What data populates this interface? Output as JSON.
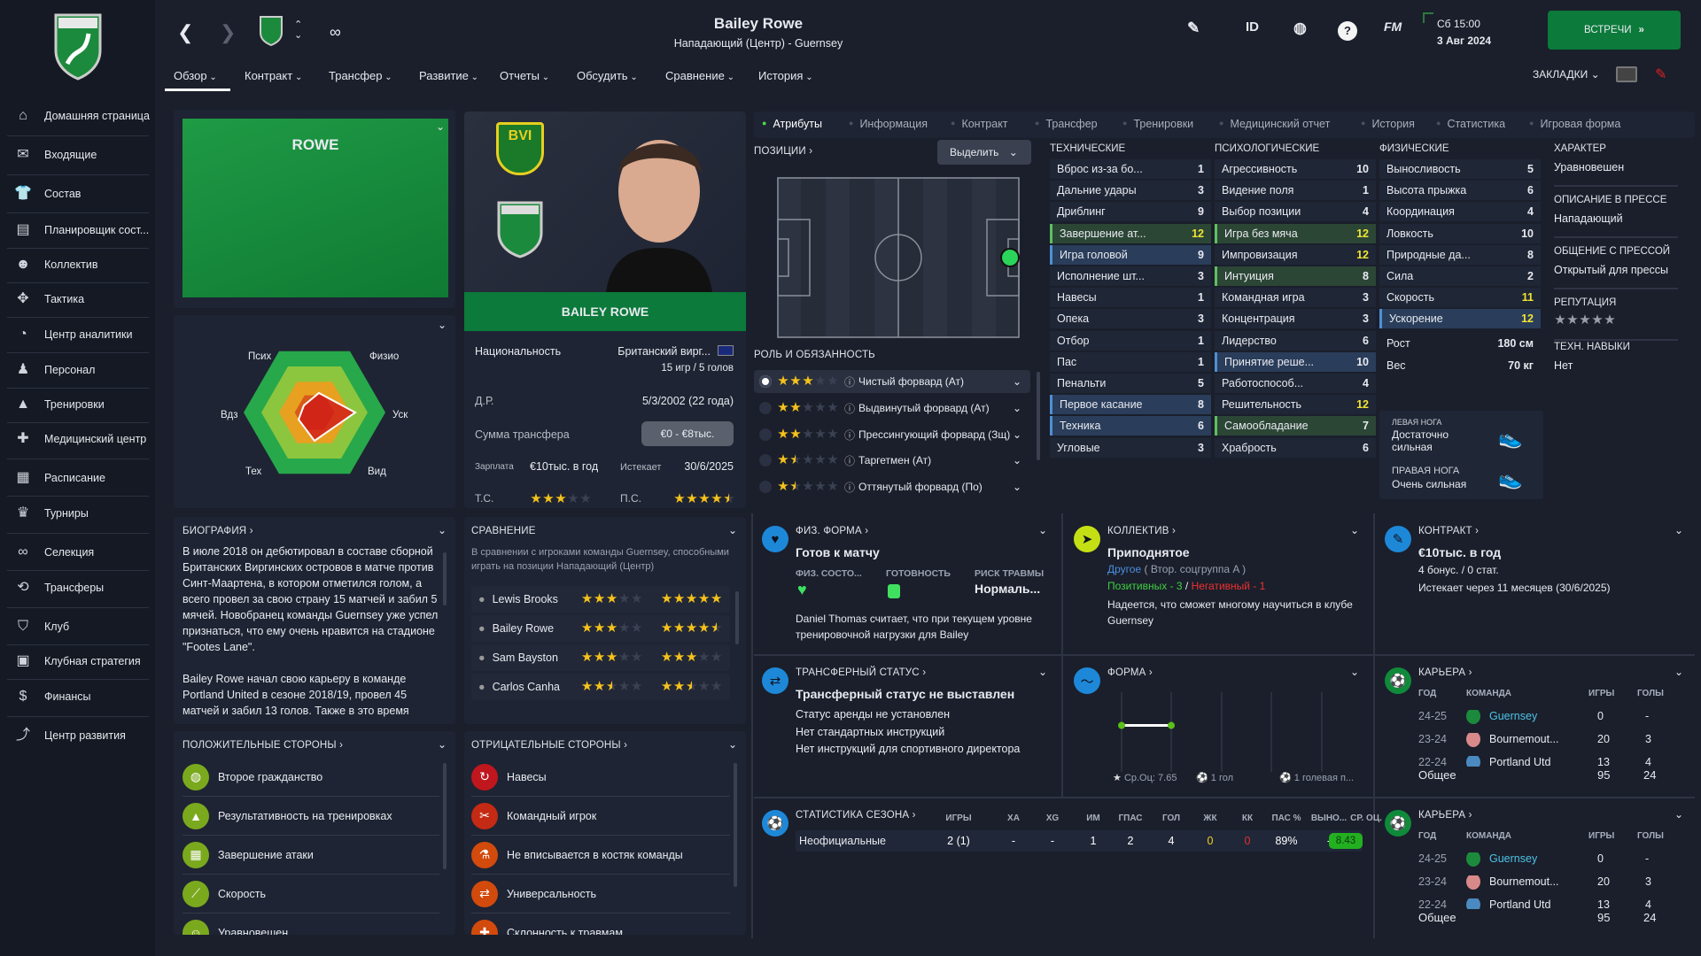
{
  "sidebar": {
    "items": [
      {
        "label": "Домашняя страница",
        "icon": "home-icon",
        "glyph": "⌂"
      },
      {
        "label": "Входящие",
        "icon": "mail-icon",
        "glyph": "✉"
      },
      {
        "label": "Состав",
        "icon": "shirt-icon",
        "glyph": "👕"
      },
      {
        "label": "Планировщик сост...",
        "icon": "clipboard-icon",
        "glyph": "▤"
      },
      {
        "label": "Коллектив",
        "icon": "group-icon",
        "glyph": "☻"
      },
      {
        "label": "Тактика",
        "icon": "tactics-icon",
        "glyph": "✥"
      },
      {
        "label": "Центр аналитики",
        "icon": "analytics-icon",
        "glyph": "◔"
      },
      {
        "label": "Персонал",
        "icon": "staff-icon",
        "glyph": "♟"
      },
      {
        "label": "Тренировки",
        "icon": "training-cone-icon",
        "glyph": "▲"
      },
      {
        "label": "Медицинский центр",
        "icon": "medical-icon",
        "glyph": "✚"
      },
      {
        "label": "Расписание",
        "icon": "calendar-icon",
        "glyph": "▦"
      },
      {
        "label": "Турниры",
        "icon": "trophy-icon",
        "glyph": "♛"
      },
      {
        "label": "Селекция",
        "icon": "binoculars-icon",
        "glyph": "∞"
      },
      {
        "label": "Трансферы",
        "icon": "transfer-icon",
        "glyph": "⟲"
      },
      {
        "label": "Клуб",
        "icon": "club-shield-icon",
        "glyph": "⛉"
      },
      {
        "label": "Клубная стратегия",
        "icon": "strategy-icon",
        "glyph": "▣"
      },
      {
        "label": "Финансы",
        "icon": "finance-icon",
        "glyph": "$"
      },
      {
        "label": "Центр развития",
        "icon": "development-icon",
        "glyph": "⤴"
      }
    ]
  },
  "header": {
    "title": "Bailey Rowe",
    "subtitle": "Нападающий (Центр) - Guernsey",
    "time": "Сб 15:00",
    "date": "3 Авг 2024",
    "id_label": "ID",
    "fm_label": "FM",
    "continue_label": "ВСТРЕЧИ",
    "bookmarks_label": "ЗАКЛАДКИ",
    "tabs": [
      "Обзор",
      "Контракт",
      "Трансфер",
      "Развитие",
      "Отчеты",
      "Обсудить",
      "Сравнение",
      "История"
    ]
  },
  "namecard": {
    "surname": "ROWE",
    "radar_labels": [
      "Псих",
      "Физио",
      "Уск",
      "Вид",
      "Тех",
      "Вдз"
    ]
  },
  "player": {
    "name": "BAILEY ROWE",
    "nat_label": "Национальность",
    "nat_value": "Британский вирг...",
    "intl": "15 игр / 5 голов",
    "dob_label": "Д.Р.",
    "dob_value": "5/3/2002 (22 года)",
    "fee_label": "Сумма трансфера",
    "fee_value": "€0 - €8тыс.",
    "wage_label": "Зарплата",
    "wage_value": "€10тыс. в год",
    "expires_label": "Истекает",
    "expires_value": "30/6/2025",
    "ca_label": "Т.С.",
    "ca_stars": 3,
    "pa_label": "П.С.",
    "pa_stars": 4.5,
    "badge_bvi": "BVI"
  },
  "subtabs": [
    "Атрибуты",
    "Информация",
    "Контракт",
    "Трансфер",
    "Тренировки",
    "Медицинский отчет",
    "История",
    "Статистика",
    "Игровая форма"
  ],
  "positions": {
    "label": "ПОЗИЦИИ",
    "highlight_label": "Выделить",
    "roles_label": "РОЛЬ И ОБЯЗАННОСТЬ",
    "roles": [
      {
        "name": "Чистый форвард (Ат)",
        "stars": 3,
        "selected": true
      },
      {
        "name": "Выдвинутый форвард (Ат)",
        "stars": 2
      },
      {
        "name": "Прессингующий форвард (Зщ)",
        "stars": 2
      },
      {
        "name": "Таргетмен (Ат)",
        "stars": 1.5
      },
      {
        "name": "Оттянутый форвард (По)",
        "stars": 1.5
      }
    ]
  },
  "attributes": {
    "technical": {
      "label": "ТЕХНИЧЕСКИЕ",
      "rows": [
        [
          "Вброс из-за бо...",
          1,
          ""
        ],
        [
          "Дальние удары",
          3,
          ""
        ],
        [
          "Дриблинг",
          9,
          ""
        ],
        [
          "Завершение ат...",
          12,
          "g"
        ],
        [
          "Игра головой",
          9,
          "b"
        ],
        [
          "Исполнение шт...",
          3,
          ""
        ],
        [
          "Навесы",
          1,
          ""
        ],
        [
          "Опека",
          3,
          ""
        ],
        [
          "Отбор",
          1,
          ""
        ],
        [
          "Пас",
          1,
          ""
        ],
        [
          "Пенальти",
          5,
          ""
        ],
        [
          "Первое касание",
          8,
          "b"
        ],
        [
          "Техника",
          6,
          "b"
        ],
        [
          "Угловые",
          3,
          ""
        ]
      ]
    },
    "mental": {
      "label": "ПСИХОЛОГИЧЕСКИЕ",
      "rows": [
        [
          "Агрессивность",
          10,
          ""
        ],
        [
          "Видение поля",
          1,
          ""
        ],
        [
          "Выбор позиции",
          4,
          ""
        ],
        [
          "Игра без мяча",
          12,
          "g"
        ],
        [
          "Импровизация",
          12,
          ""
        ],
        [
          "Интуиция",
          8,
          "g"
        ],
        [
          "Командная игра",
          3,
          ""
        ],
        [
          "Концентрация",
          3,
          ""
        ],
        [
          "Лидерство",
          6,
          ""
        ],
        [
          "Принятие реше...",
          10,
          "b"
        ],
        [
          "Работоспособ...",
          4,
          ""
        ],
        [
          "Решительность",
          12,
          ""
        ],
        [
          "Самообладание",
          7,
          "g"
        ],
        [
          "Храбрость",
          6,
          ""
        ]
      ]
    },
    "physical": {
      "label": "ФИЗИЧЕСКИЕ",
      "rows": [
        [
          "Выносливость",
          5,
          ""
        ],
        [
          "Высота прыжка",
          6,
          ""
        ],
        [
          "Координация",
          4,
          ""
        ],
        [
          "Ловкость",
          10,
          ""
        ],
        [
          "Природные да...",
          8,
          ""
        ],
        [
          "Сила",
          2,
          ""
        ],
        [
          "Скорость",
          11,
          ""
        ],
        [
          "Ускорение",
          12,
          "b"
        ]
      ],
      "height_label": "Рост",
      "height_value": "180 см",
      "weight_label": "Вес",
      "weight_value": "70 кг",
      "left_foot_label": "ЛЕВАЯ НОГА",
      "left_foot_value": "Достаточно сильная",
      "right_foot_label": "ПРАВАЯ НОГА",
      "right_foot_value": "Очень сильная"
    },
    "side": [
      {
        "label": "ХАРАКТЕР",
        "value": "Уравновешен"
      },
      {
        "label": "ОПИСАНИЕ В ПРЕССЕ",
        "value": "Нападающий"
      },
      {
        "label": "ОБЩЕНИЕ С ПРЕССОЙ",
        "value": "Открытый для прессы"
      },
      {
        "label": "РЕПУТАЦИЯ",
        "value": ""
      },
      {
        "label": "ТЕХН. НАВЫКИ",
        "value": "Нет"
      }
    ],
    "reputation_stars": 5
  },
  "biography": {
    "title": "БИОГРАФИЯ",
    "p1": "В июле 2018 он дебютировал в составе сборной Британских Виргинских островов в матче против Синт-Маартена, в котором отметился голом, а всего провел за свою страну 15 матчей и забил 5 мячей. Новобранец команды Guernsey уже успел признаться, что ему очень нравится на стадионе \"Footes Lane\".",
    "p2": "Bailey Rowe начал свою карьеру в команде Portland United в сезоне 2018/19, провел 45 матчей и забил 13 голов. Также в это время"
  },
  "comparison": {
    "title": "СРАВНЕНИЕ",
    "desc": "В сравнении с игроками команды Guernsey, способными играть на позиции Нападающий (Центр)",
    "rows": [
      {
        "name": "Lewis Brooks",
        "ca": 3,
        "pa": 5
      },
      {
        "name": "Bailey Rowe",
        "ca": 3,
        "pa": 4.5
      },
      {
        "name": "Sam Bayston",
        "ca": 3,
        "pa": 3
      },
      {
        "name": "Carlos Canha",
        "ca": 2.5,
        "pa": 2.5
      }
    ]
  },
  "strengths": {
    "title": "ПОЛОЖИТЕЛЬНЫЕ СТОРОНЫ",
    "items": [
      {
        "label": "Второе гражданство",
        "icon": "globe-icon",
        "glyph": "◍"
      },
      {
        "label": "Результативность на тренировках",
        "icon": "training-cone-icon",
        "glyph": "▲"
      },
      {
        "label": "Завершение атаки",
        "icon": "goal-icon",
        "glyph": "▦"
      },
      {
        "label": "Скорость",
        "icon": "speed-icon",
        "glyph": "⟋"
      },
      {
        "label": "Уравновешен",
        "icon": "head-icon",
        "glyph": "☺"
      }
    ],
    "color": "#7aa91e"
  },
  "weaknesses": {
    "title": "ОТРИЦАТЕЛЬНЫЕ СТОРОНЫ",
    "items": [
      {
        "label": "Навесы",
        "icon": "cross-ball-icon",
        "glyph": "↻",
        "color": "#c0161e"
      },
      {
        "label": "Командный игрок",
        "icon": "handshake-icon",
        "glyph": "✂",
        "color": "#c42a14"
      },
      {
        "label": "Не вписывается в костяк команды",
        "icon": "flask-icon",
        "glyph": "⚗",
        "color": "#d24a0c"
      },
      {
        "label": "Универсальность",
        "icon": "arrows-icon",
        "glyph": "⇄",
        "color": "#d24a0c"
      },
      {
        "label": "Склонность к травмам",
        "icon": "plus-icon",
        "glyph": "✚",
        "color": "#d24a0c"
      }
    ]
  },
  "fitness": {
    "title": "ФИЗ. ФОРМА",
    "status": "Готов к матчу",
    "c1": "ФИЗ. СОСТО...",
    "c2": "ГОТОВНОСТЬ",
    "c3": "РИСК ТРАВМЫ",
    "c3_value": "Нормаль...",
    "text": "Daniel Thomas считает, что при текущем уровне тренировочной нагрузки для Bailey"
  },
  "squad": {
    "title": "КОЛЛЕКТИВ",
    "status": "Приподнятое",
    "group_link": "Другое",
    "group_rest": "( Втор. соцгруппа A )",
    "positive": "Позитивных - 3",
    "sep": "/",
    "negative": "Негативный - 1",
    "text": "Надеется, что сможет многому научиться в клубе Guernsey"
  },
  "contract": {
    "title": "КОНТРАКТ",
    "wage": "€10тыс. в год",
    "bonus": "4 бонус. / 0 стат.",
    "expiry": "Истекает через 11 месяцев  (30/6/2025)"
  },
  "transfer": {
    "title": "ТРАНСФЕРНЫЙ СТАТУС",
    "status": "Трансферный статус не выставлен",
    "l1": "Статус аренды не установлен",
    "l2": "Нет стандартных инструкций",
    "l3": "Нет инструкций для спортивного директора"
  },
  "form": {
    "title": "ФОРМА",
    "avg": "Ср.Оц: 7.65",
    "goals": "1 гол",
    "assists": "1 голевая п...",
    "ratings": [
      7.65,
      7.65
    ]
  },
  "career": {
    "title": "КАРЬЕРА",
    "headers": [
      "ГОД",
      "КОМАНДА",
      "ИГРЫ",
      "ГОЛЫ"
    ],
    "rows": [
      [
        "24-25",
        "Guernsey",
        "0",
        "-"
      ],
      [
        "23-24",
        "Bournemout...",
        "20",
        "3"
      ],
      [
        "22-24",
        "Portland Utd",
        "13",
        "4"
      ]
    ],
    "total_label": "Общее",
    "total_games": "95",
    "total_goals": "24"
  },
  "season": {
    "title": "СТАТИСТИКА СЕЗОНА",
    "headers": [
      "ИГРЫ",
      "ХА",
      "XG",
      "ИМ",
      "ГПАС",
      "ГОЛ",
      "ЖК",
      "КК",
      "ПАС %",
      "ВЫНО...",
      "СР. ОЦ."
    ],
    "row_label": "Неофициальные",
    "values": [
      "2 (1)",
      "-",
      "-",
      "1",
      "2",
      "4",
      "0",
      "0",
      "89%",
      "-",
      "8.43"
    ]
  },
  "colors": {
    "accent_green": "#0b7a3a",
    "highlight_yellow": "#f2e532",
    "link_blue": "#4ec3e6"
  }
}
